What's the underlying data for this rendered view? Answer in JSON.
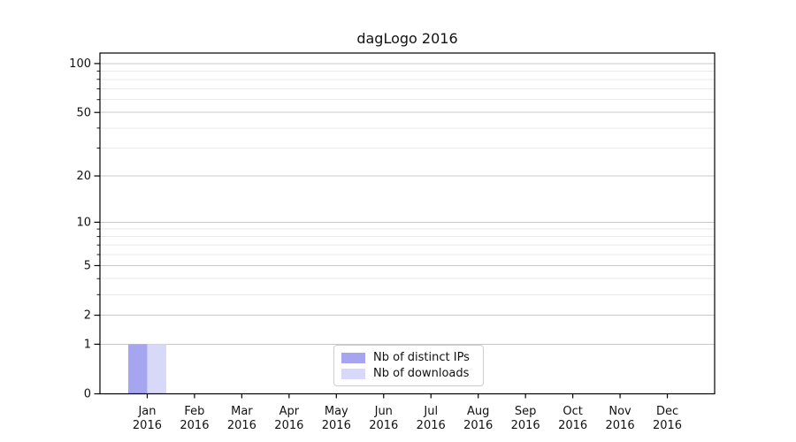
{
  "chart_data": {
    "type": "bar",
    "title": "dagLogo 2016",
    "x_tick_labels": [
      {
        "month": "Jan",
        "year": "2016"
      },
      {
        "month": "Feb",
        "year": "2016"
      },
      {
        "month": "Mar",
        "year": "2016"
      },
      {
        "month": "Apr",
        "year": "2016"
      },
      {
        "month": "May",
        "year": "2016"
      },
      {
        "month": "Jun",
        "year": "2016"
      },
      {
        "month": "Jul",
        "year": "2016"
      },
      {
        "month": "Aug",
        "year": "2016"
      },
      {
        "month": "Sep",
        "year": "2016"
      },
      {
        "month": "Oct",
        "year": "2016"
      },
      {
        "month": "Nov",
        "year": "2016"
      },
      {
        "month": "Dec",
        "year": "2016"
      }
    ],
    "series": [
      {
        "name": "Nb of distinct IPs",
        "color": "#a5a5f0",
        "values": [
          1,
          0,
          0,
          0,
          0,
          0,
          0,
          0,
          0,
          0,
          0,
          0
        ]
      },
      {
        "name": "Nb of downloads",
        "color": "#d8d8f8",
        "values": [
          1,
          0,
          0,
          0,
          0,
          0,
          0,
          0,
          0,
          0,
          0,
          0
        ]
      }
    ],
    "y_scale": "log1p",
    "y_axis_ticks": [
      0,
      1,
      2,
      5,
      10,
      20,
      50,
      100
    ],
    "y_axis_minor_gridlines": [
      3,
      4,
      6,
      7,
      8,
      9,
      30,
      40,
      60,
      70,
      80,
      90
    ],
    "ylim": [
      0,
      115
    ],
    "grid": "horizontal",
    "legend_position": "lower center",
    "colors": {
      "major_grid": "#c8c8c8",
      "minor_grid": "#e9e9e9",
      "axis": "#000000",
      "text": "#111111"
    }
  }
}
